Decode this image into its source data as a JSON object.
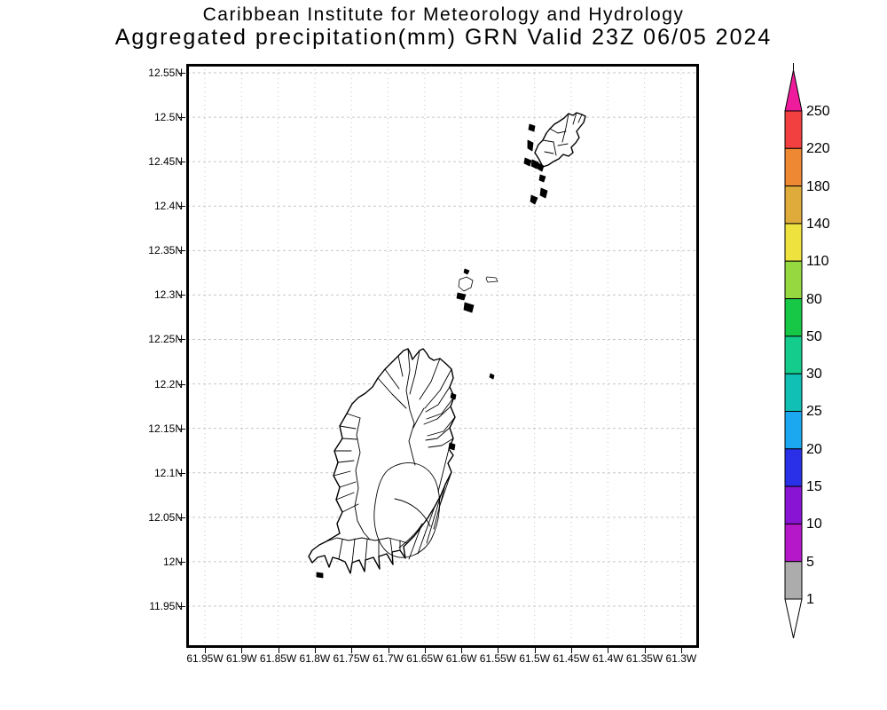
{
  "title": {
    "line1": "Caribbean Institute for Meteorology and Hydrology",
    "line2": "Aggregated precipitation(mm) GRN Valid 23Z 06/05 2024"
  },
  "map": {
    "lat_labels": [
      "12.55N",
      "12.5N",
      "12.45N",
      "12.4N",
      "12.35N",
      "12.3N",
      "12.25N",
      "12.2N",
      "12.15N",
      "12.1N",
      "12.05N",
      "12N",
      "11.95N"
    ],
    "lon_labels": [
      "61.95W",
      "61.9W",
      "61.85W",
      "61.8W",
      "61.75W",
      "61.7W",
      "61.65W",
      "61.6W",
      "61.55W",
      "61.5W",
      "61.45W",
      "61.4W",
      "61.35W",
      "61.3W"
    ]
  },
  "colorbar": {
    "tick_labels": [
      "250",
      "220",
      "180",
      "140",
      "110",
      "80",
      "50",
      "30",
      "25",
      "20",
      "15",
      "10",
      "5",
      "1"
    ],
    "segment_colors": [
      "#f24040",
      "#ee8832",
      "#dfac3c",
      "#eee23e",
      "#96d840",
      "#16c846",
      "#14cc8c",
      "#10c0b4",
      "#1ca8f0",
      "#2a30e8",
      "#8a14d4",
      "#b418c8",
      "#acacac"
    ],
    "arrow_top_color": "#ee1c9c",
    "arrow_bottom_color": "#ffffff"
  },
  "colors": {
    "gridline": "#c6c6c6",
    "coastline": "#000000",
    "frame": "#000000",
    "background": "#ffffff",
    "text": "#000000"
  }
}
